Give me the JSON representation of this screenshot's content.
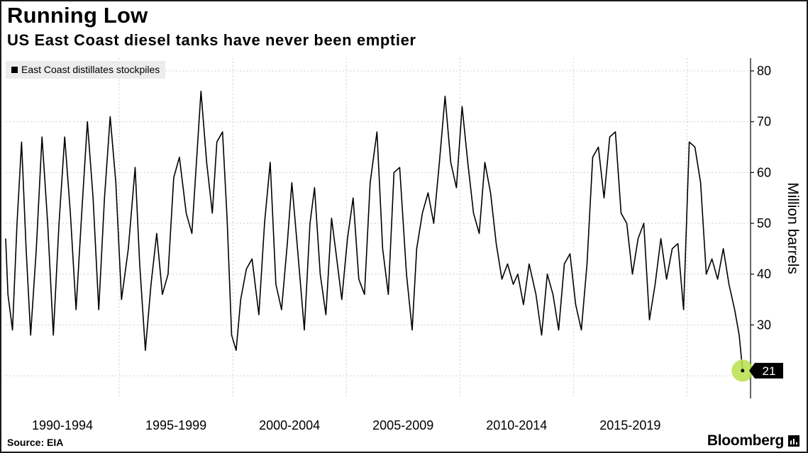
{
  "header": {
    "title": "Running Low",
    "subtitle": "US East Coast diesel tanks have never been emptier"
  },
  "footer": {
    "source": "Source: EIA",
    "brand": "Bloomberg"
  },
  "chart_data": {
    "type": "line",
    "title": "Running Low",
    "subtitle": "US East Coast diesel tanks have never been emptier",
    "ylabel": "Million barrels",
    "xlabel": "",
    "ylim": [
      16,
      82
    ],
    "xlim": [
      1990.0,
      2022.8
    ],
    "yticks": [
      30,
      40,
      50,
      60,
      70,
      80
    ],
    "xtick_labels": [
      {
        "label": "1990-1994",
        "x": 1992.5
      },
      {
        "label": "1995-1999",
        "x": 1997.5
      },
      {
        "label": "2000-2004",
        "x": 2002.5
      },
      {
        "label": "2005-2009",
        "x": 2007.5
      },
      {
        "label": "2010-2014",
        "x": 2012.5
      },
      {
        "label": "2015-2019",
        "x": 2017.5
      }
    ],
    "grid": true,
    "legend": {
      "placement": "top-left",
      "entries": [
        "East Coast distillates stockpiles"
      ]
    },
    "line_color": "#000000",
    "highlight_color": "#b8e04a",
    "annotation": {
      "label": "21",
      "x": 2022.45,
      "y": 21
    },
    "series": [
      {
        "name": "East Coast distillates stockpiles",
        "x": [
          1990.0,
          1990.1,
          1990.3,
          1990.5,
          1990.7,
          1990.9,
          1991.1,
          1991.35,
          1991.6,
          1991.85,
          1992.1,
          1992.35,
          1992.6,
          1992.85,
          1993.1,
          1993.35,
          1993.6,
          1993.85,
          1994.1,
          1994.35,
          1994.6,
          1994.85,
          1995.1,
          1995.4,
          1995.7,
          1995.9,
          1996.15,
          1996.4,
          1996.65,
          1996.9,
          1997.15,
          1997.4,
          1997.65,
          1997.95,
          1998.2,
          1998.4,
          1998.6,
          1998.85,
          1999.1,
          1999.3,
          1999.55,
          1999.75,
          1999.95,
          2000.15,
          2000.35,
          2000.6,
          2000.85,
          2001.15,
          2001.4,
          2001.65,
          2001.9,
          2002.15,
          2002.4,
          2002.6,
          2002.85,
          2003.15,
          2003.4,
          2003.6,
          2003.85,
          2004.1,
          2004.35,
          2004.55,
          2004.8,
          2005.05,
          2005.3,
          2005.55,
          2005.8,
          2006.05,
          2006.35,
          2006.6,
          2006.85,
          2007.1,
          2007.35,
          2007.65,
          2007.9,
          2008.1,
          2008.35,
          2008.6,
          2008.85,
          2009.1,
          2009.35,
          2009.6,
          2009.85,
          2010.1,
          2010.35,
          2010.6,
          2010.85,
          2011.1,
          2011.35,
          2011.6,
          2011.85,
          2012.1,
          2012.35,
          2012.55,
          2012.8,
          2013.05,
          2013.35,
          2013.6,
          2013.85,
          2014.1,
          2014.35,
          2014.6,
          2014.85,
          2015.1,
          2015.35,
          2015.6,
          2015.85,
          2016.1,
          2016.35,
          2016.6,
          2016.85,
          2017.1,
          2017.35,
          2017.6,
          2017.85,
          2018.1,
          2018.35,
          2018.6,
          2018.85,
          2019.1,
          2019.35,
          2019.6,
          2019.85,
          2020.1,
          2020.35,
          2020.6,
          2020.85,
          2021.1,
          2021.35,
          2021.6,
          2021.85,
          2022.1,
          2022.3,
          2022.45
        ],
        "values": [
          47,
          36,
          29,
          50,
          66,
          45,
          28,
          45,
          67,
          50,
          28,
          50,
          67,
          52,
          33,
          52,
          70,
          55,
          33,
          55,
          71,
          58,
          35,
          45,
          61,
          42,
          25,
          38,
          48,
          36,
          40,
          59,
          63,
          52,
          48,
          62,
          76,
          62,
          52,
          66,
          68,
          51,
          28,
          25,
          35,
          41,
          43,
          32,
          50,
          62,
          38,
          33,
          46,
          58,
          45,
          29,
          50,
          57,
          40,
          32,
          51,
          44,
          35,
          47,
          55,
          39,
          36,
          58,
          68,
          45,
          36,
          60,
          61,
          40,
          29,
          45,
          52,
          56,
          50,
          62,
          75,
          62,
          57,
          73,
          62,
          52,
          48,
          62,
          56,
          46,
          39,
          42,
          38,
          40,
          34,
          42,
          36,
          28,
          40,
          36,
          29,
          42,
          44,
          34,
          29,
          42,
          63,
          65,
          55,
          67,
          68,
          52,
          50,
          40,
          47,
          50,
          31,
          38,
          47,
          39,
          45,
          46,
          33,
          66,
          65,
          58,
          40,
          43,
          39,
          45,
          38,
          33,
          28,
          21
        ]
      }
    ]
  }
}
